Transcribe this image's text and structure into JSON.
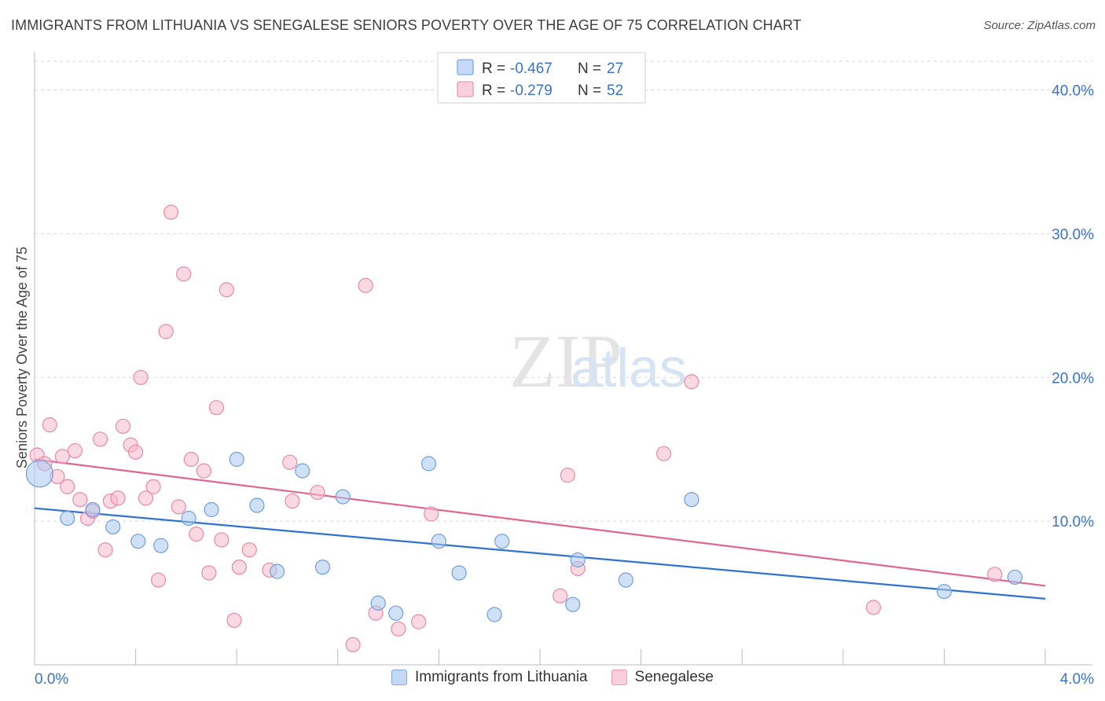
{
  "title": "IMMIGRANTS FROM LITHUANIA VS SENEGALESE SENIORS POVERTY OVER THE AGE OF 75 CORRELATION CHART",
  "source": "Source: ZipAtlas.com",
  "watermark": {
    "zip": "ZIP",
    "atlas": "atlas"
  },
  "colors": {
    "blue_fill": "#a9c8f0",
    "blue_stroke": "#6f9fdc",
    "blue_line": "#2f72d0",
    "pink_fill": "#f7b9cc",
    "pink_stroke": "#e88aa6",
    "pink_line": "#e06690",
    "axis_label": "#3a73c9",
    "grid": "#d9d9d9"
  },
  "stats_legend": [
    {
      "r_label": "R = ",
      "r_value": "-0.467",
      "n_label": "N = ",
      "n_value": "27",
      "color": "blue"
    },
    {
      "r_label": "R = ",
      "r_value": "-0.279",
      "n_label": "N = ",
      "n_value": "52",
      "color": "pink"
    }
  ],
  "chart_data": {
    "type": "scatter",
    "title": "IMMIGRANTS FROM LITHUANIA VS SENEGALESE SENIORS POVERTY OVER THE AGE OF 75 CORRELATION CHART",
    "xlabel": "",
    "ylabel": "Seniors Poverty Over the Age of 75",
    "xlim": [
      0,
      4
    ],
    "ylim": [
      0,
      42
    ],
    "x_tick_labels": [
      "0.0%",
      "4.0%"
    ],
    "y_ticks": [
      10,
      20,
      30,
      40
    ],
    "y_tick_labels": [
      "10.0%",
      "20.0%",
      "30.0%",
      "40.0%"
    ],
    "grid": true,
    "legend_position": "bottom-center",
    "series": [
      {
        "name": "Immigrants from Lithuania",
        "color": "blue",
        "trend": {
          "x": [
            0,
            4
          ],
          "y": [
            10.9,
            4.6
          ]
        },
        "points": [
          {
            "x": 0.02,
            "y": 13.3,
            "big": true
          },
          {
            "x": 0.13,
            "y": 10.2
          },
          {
            "x": 0.23,
            "y": 10.8
          },
          {
            "x": 0.31,
            "y": 9.6
          },
          {
            "x": 0.41,
            "y": 8.6
          },
          {
            "x": 0.5,
            "y": 8.3
          },
          {
            "x": 0.61,
            "y": 10.2
          },
          {
            "x": 0.7,
            "y": 10.8
          },
          {
            "x": 0.8,
            "y": 14.3
          },
          {
            "x": 0.88,
            "y": 11.1
          },
          {
            "x": 0.96,
            "y": 6.5
          },
          {
            "x": 1.06,
            "y": 13.5
          },
          {
            "x": 1.14,
            "y": 6.8
          },
          {
            "x": 1.22,
            "y": 11.7
          },
          {
            "x": 1.36,
            "y": 4.3
          },
          {
            "x": 1.43,
            "y": 3.6
          },
          {
            "x": 1.56,
            "y": 14.0
          },
          {
            "x": 1.6,
            "y": 8.6
          },
          {
            "x": 1.68,
            "y": 6.4
          },
          {
            "x": 1.82,
            "y": 3.5
          },
          {
            "x": 1.85,
            "y": 8.6
          },
          {
            "x": 2.13,
            "y": 4.2
          },
          {
            "x": 2.15,
            "y": 7.3
          },
          {
            "x": 2.34,
            "y": 5.9
          },
          {
            "x": 2.6,
            "y": 11.5
          },
          {
            "x": 3.6,
            "y": 5.1
          },
          {
            "x": 3.88,
            "y": 6.1
          }
        ]
      },
      {
        "name": "Senegalese",
        "color": "pink",
        "trend": {
          "x": [
            0,
            4
          ],
          "y": [
            14.3,
            5.5
          ]
        },
        "points": [
          {
            "x": 0.01,
            "y": 14.6
          },
          {
            "x": 0.04,
            "y": 14.0
          },
          {
            "x": 0.06,
            "y": 16.7
          },
          {
            "x": 0.09,
            "y": 13.1
          },
          {
            "x": 0.11,
            "y": 14.5
          },
          {
            "x": 0.13,
            "y": 12.4
          },
          {
            "x": 0.16,
            "y": 14.9
          },
          {
            "x": 0.18,
            "y": 11.5
          },
          {
            "x": 0.21,
            "y": 10.2
          },
          {
            "x": 0.23,
            "y": 10.7
          },
          {
            "x": 0.26,
            "y": 15.7
          },
          {
            "x": 0.28,
            "y": 8.0
          },
          {
            "x": 0.3,
            "y": 11.4
          },
          {
            "x": 0.33,
            "y": 11.6
          },
          {
            "x": 0.35,
            "y": 16.6
          },
          {
            "x": 0.38,
            "y": 15.3
          },
          {
            "x": 0.4,
            "y": 14.8
          },
          {
            "x": 0.42,
            "y": 20.0
          },
          {
            "x": 0.44,
            "y": 11.6
          },
          {
            "x": 0.47,
            "y": 12.4
          },
          {
            "x": 0.49,
            "y": 5.9
          },
          {
            "x": 0.52,
            "y": 23.2
          },
          {
            "x": 0.54,
            "y": 31.5
          },
          {
            "x": 0.57,
            "y": 11.0
          },
          {
            "x": 0.59,
            "y": 27.2
          },
          {
            "x": 0.62,
            "y": 14.3
          },
          {
            "x": 0.64,
            "y": 9.1
          },
          {
            "x": 0.67,
            "y": 13.5
          },
          {
            "x": 0.69,
            "y": 6.4
          },
          {
            "x": 0.72,
            "y": 17.9
          },
          {
            "x": 0.74,
            "y": 8.7
          },
          {
            "x": 0.76,
            "y": 26.1
          },
          {
            "x": 0.79,
            "y": 3.1
          },
          {
            "x": 0.81,
            "y": 6.8
          },
          {
            "x": 0.85,
            "y": 8.0
          },
          {
            "x": 0.93,
            "y": 6.6
          },
          {
            "x": 1.01,
            "y": 14.1
          },
          {
            "x": 1.02,
            "y": 11.4
          },
          {
            "x": 1.12,
            "y": 12.0
          },
          {
            "x": 1.26,
            "y": 1.4
          },
          {
            "x": 1.31,
            "y": 26.4
          },
          {
            "x": 1.35,
            "y": 3.6
          },
          {
            "x": 1.44,
            "y": 2.5
          },
          {
            "x": 1.52,
            "y": 3.0
          },
          {
            "x": 1.57,
            "y": 10.5
          },
          {
            "x": 2.08,
            "y": 4.8
          },
          {
            "x": 2.11,
            "y": 13.2
          },
          {
            "x": 2.15,
            "y": 6.7
          },
          {
            "x": 2.49,
            "y": 14.7
          },
          {
            "x": 2.6,
            "y": 19.7
          },
          {
            "x": 3.32,
            "y": 4.0
          },
          {
            "x": 3.8,
            "y": 6.3
          }
        ]
      }
    ]
  }
}
